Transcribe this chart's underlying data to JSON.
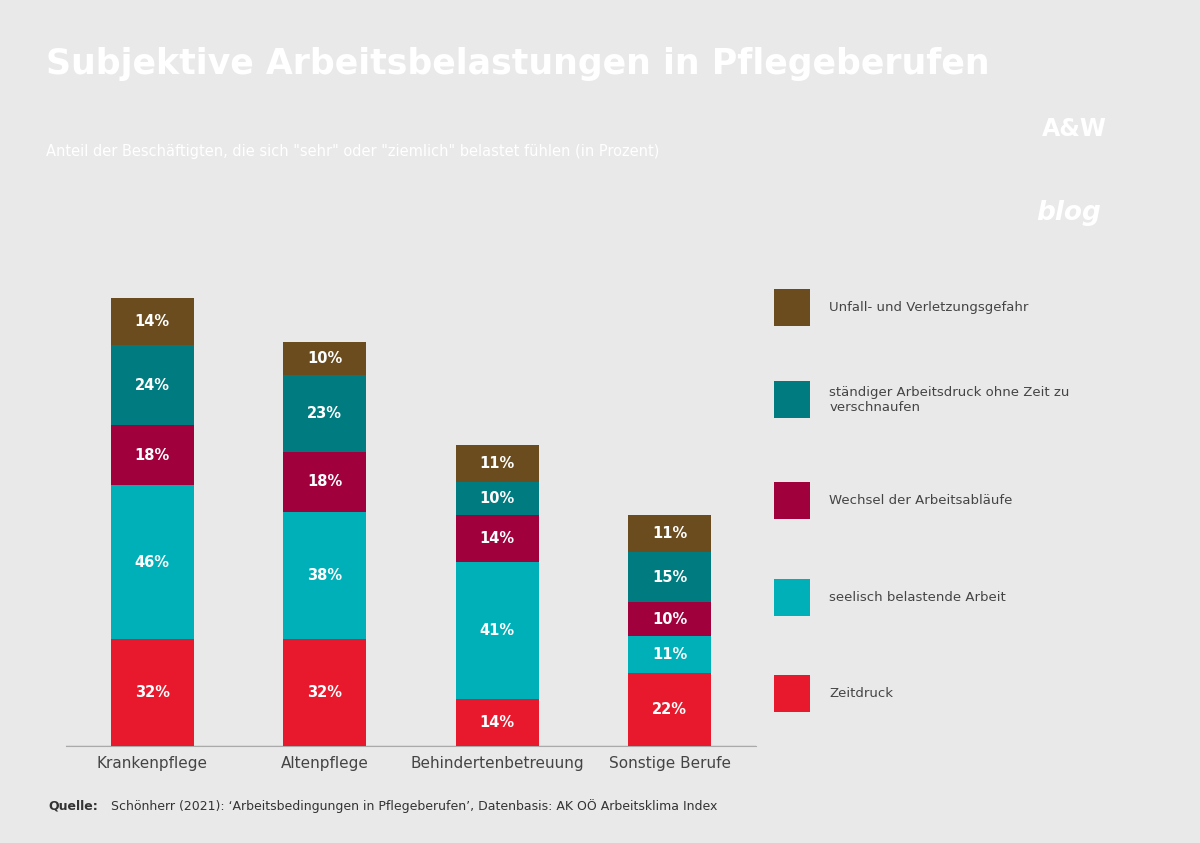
{
  "title": "Subjektive Arbeitsbelastungen in Pflegeberufen",
  "subtitle": "Anteil der Beschäftigten, die sich \"sehr\" oder \"ziemlich\" belastet fühlen (in Prozent)",
  "source_bold": "Quelle:",
  "source_rest": " Schönherr (2021): ‘Arbeitsbedingungen in Pflegeberufen’, Datenbasis: AK OÖ Arbeitsklima Index",
  "header_bg_color": "#2272a0",
  "chart_bg_color": "#e9e9e9",
  "categories": [
    "Krankenpflege",
    "Altenpflege",
    "Behindertenbetreuung",
    "Sonstige Berufe"
  ],
  "series": [
    {
      "name": "Zeitdruck",
      "color": "#e8192c",
      "values": [
        32,
        32,
        14,
        22
      ]
    },
    {
      "name": "seelisch belastende Arbeit",
      "color": "#00b0b9",
      "values": [
        46,
        38,
        41,
        11
      ]
    },
    {
      "name": "Wechsel der Arbeitsabläufe",
      "color": "#a0003c",
      "values": [
        18,
        18,
        14,
        10
      ]
    },
    {
      "name": "ständiger Arbeitsdruck ohne Zeit zu\nverschnaufen",
      "color": "#007b7f",
      "values": [
        24,
        23,
        10,
        15
      ]
    },
    {
      "name": "Unfall- und Verletzungsgefahr",
      "color": "#6b4c1e",
      "values": [
        14,
        10,
        11,
        11
      ]
    }
  ],
  "bar_width": 0.48,
  "ylim": [
    0,
    145
  ],
  "logo_bg_top": "#cc1133",
  "logo_bg_bottom": "#cc1133"
}
